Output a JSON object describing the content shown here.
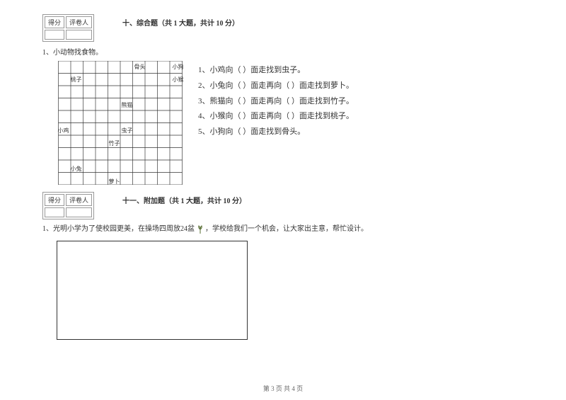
{
  "score_box": {
    "col1": "得分",
    "col2": "评卷人"
  },
  "section10": {
    "title": "十、综合题（共 1 大题，共计 10 分）",
    "q_label": "1、小动物找食物。",
    "grid": {
      "rows": 10,
      "cols": 10,
      "cell_size": 18,
      "border_color": "#333333",
      "labels": [
        {
          "text": "骨头",
          "row": 0,
          "col": 6
        },
        {
          "text": "小狗",
          "row": 0,
          "col": 9
        },
        {
          "text": "桃子",
          "row": 1,
          "col": 1
        },
        {
          "text": "小猴",
          "row": 1,
          "col": 9
        },
        {
          "text": "熊猫",
          "row": 3,
          "col": 5
        },
        {
          "text": "虫子",
          "row": 5,
          "col": 5
        },
        {
          "text": "小鸡",
          "row": 5,
          "col": 0
        },
        {
          "text": "竹子",
          "row": 6,
          "col": 4
        },
        {
          "text": "小兔",
          "row": 8,
          "col": 1
        },
        {
          "text": "萝卜",
          "row": 9,
          "col": 4
        }
      ]
    },
    "questions": [
      "1、小鸡向（    ）面走找到虫子。",
      "2、小兔向（    ）面走再向（    ）面走找到萝卜。",
      "3、熊猫向（    ）面走再向（    ）面走找到竹子。",
      "4、小猴向（    ）面走再向（    ）面走找到桃子。",
      "5、小狗向（    ）面走找到骨头。"
    ]
  },
  "section11": {
    "title": "十一、附加题（共 1 大题，共计 10 分）",
    "q_text_a": "1、光明小学为了使校园更美，在操场四周放24盆",
    "q_text_b": "，学校给我们一个机会，让大家出主意，帮忙设计。"
  },
  "page_footer": "第 3 页 共 4 页"
}
